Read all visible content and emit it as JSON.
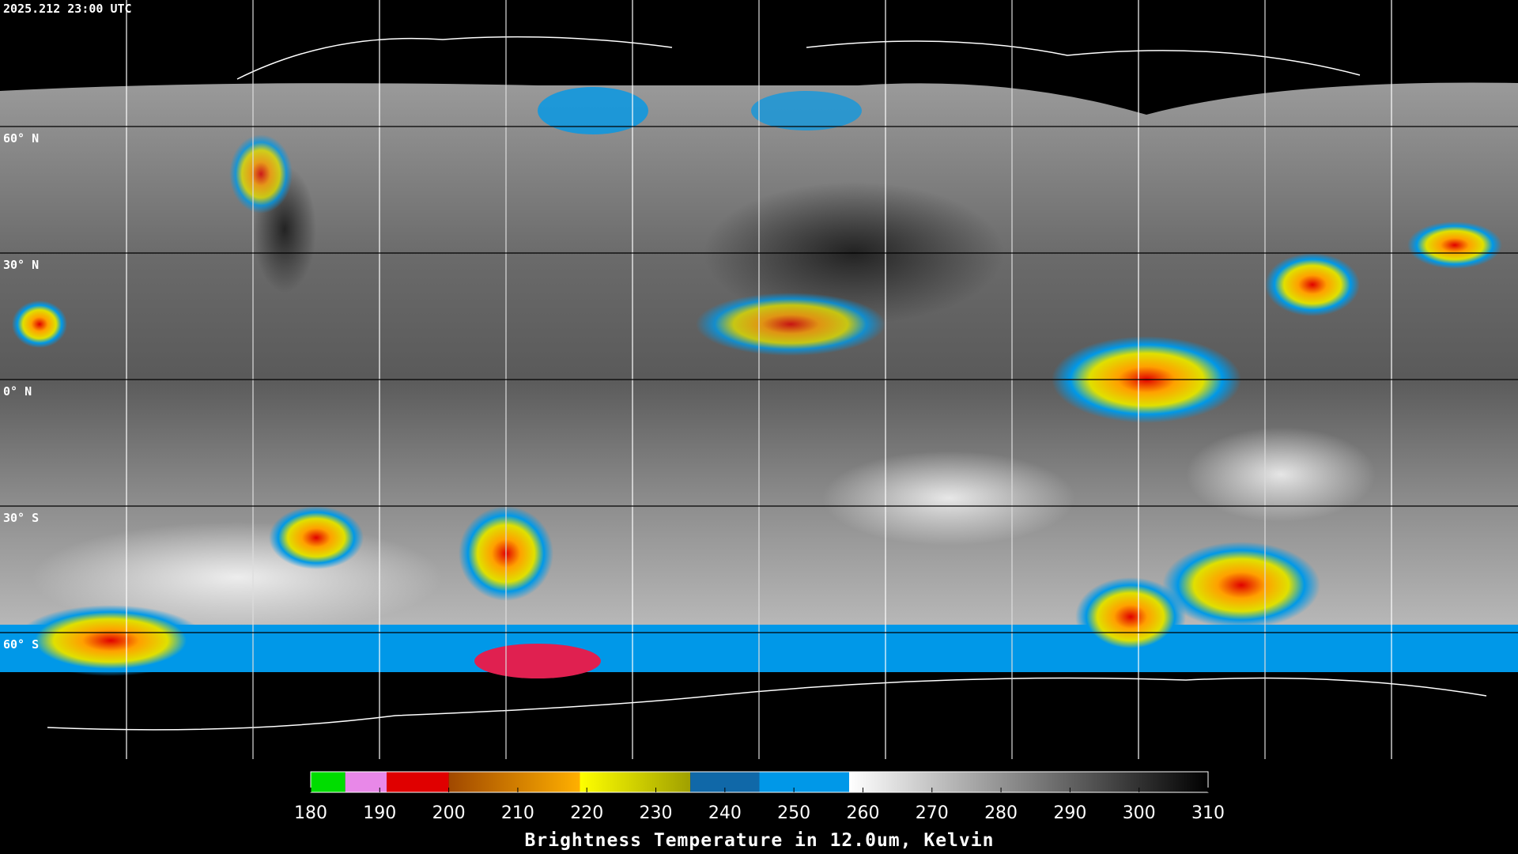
{
  "timestamp": "2025.212 23:00 UTC",
  "latitude_labels": [
    "60° N",
    "30° N",
    "0° N",
    "30° S",
    "60° S"
  ],
  "colorbar": {
    "title": "Brightness Temperature in 12.0um, Kelvin",
    "range": [
      180,
      310
    ],
    "ticks": [
      180,
      190,
      200,
      210,
      220,
      230,
      240,
      250,
      260,
      270,
      280,
      290,
      300,
      310
    ],
    "segments": [
      {
        "from": 180,
        "to": 185,
        "colors": [
          "#00dd00",
          "#00dd00"
        ]
      },
      {
        "from": 185,
        "to": 191,
        "colors": [
          "#e888e8",
          "#e888e8"
        ]
      },
      {
        "from": 191,
        "to": 200,
        "colors": [
          "#e00000",
          "#e00000"
        ]
      },
      {
        "from": 200,
        "to": 219,
        "colors": [
          "#a04800",
          "#ffb000"
        ]
      },
      {
        "from": 219,
        "to": 235,
        "colors": [
          "#ffff00",
          "#a0a000"
        ]
      },
      {
        "from": 235,
        "to": 245,
        "colors": [
          "#1068a8",
          "#1068a8"
        ]
      },
      {
        "from": 245,
        "to": 258,
        "colors": [
          "#0098e8",
          "#0098e8"
        ]
      },
      {
        "from": 258,
        "to": 310,
        "colors": [
          "#ffffff",
          "#000000"
        ]
      }
    ]
  }
}
